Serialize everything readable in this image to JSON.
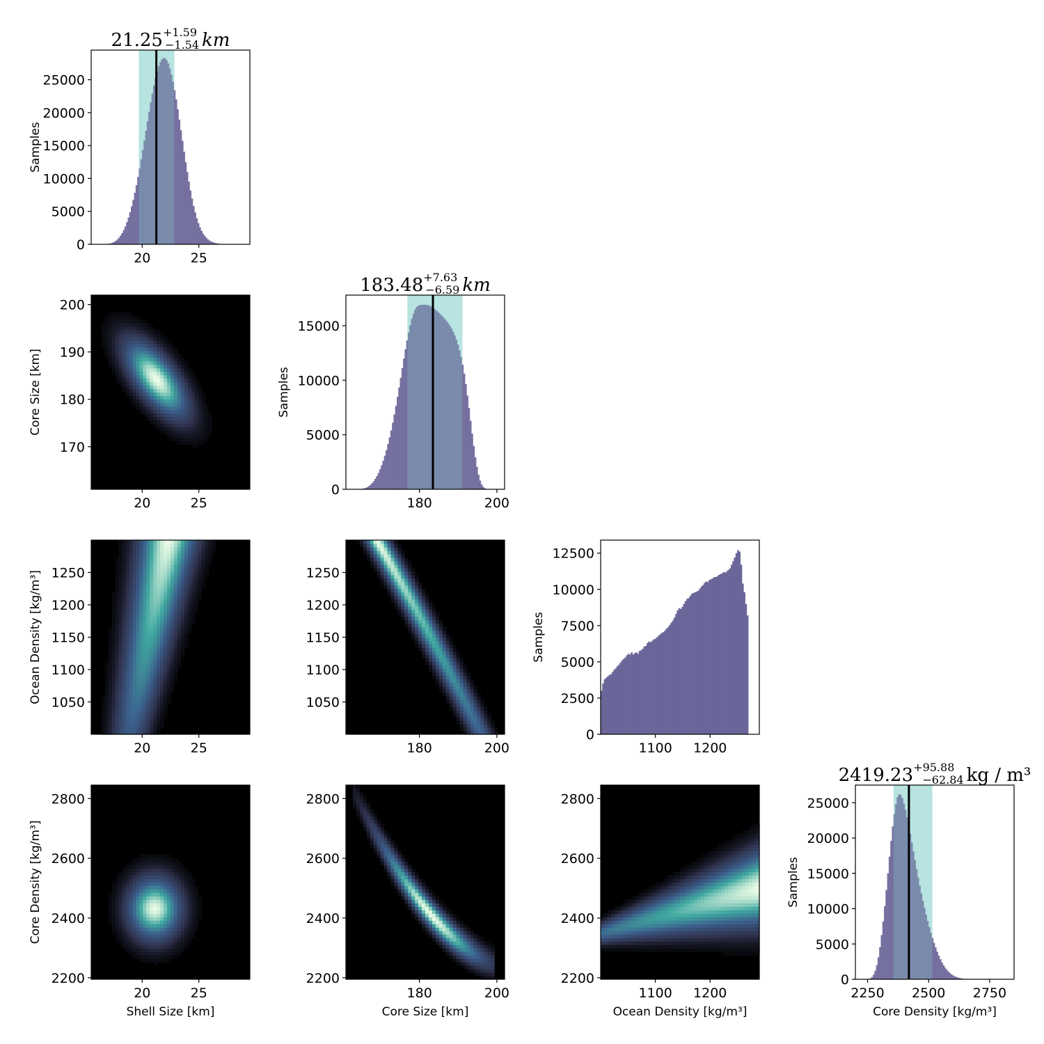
{
  "figure": {
    "type": "corner-plot"
  },
  "colors": {
    "hist_fill": "#6b6699",
    "ci_band": "#8fd3cf",
    "ci_band_opacity": 0.5,
    "median_line": "#000000",
    "density_low": "#000000",
    "density_mid": "#30334f",
    "density_mid2": "#3c5f8c",
    "density_high": "#3fa7a0",
    "density_peak": "#e9fbe4"
  },
  "chart_data": [
    {
      "type": "histogram",
      "id": "shell",
      "title_main": "21.25",
      "title_plus": "+1.59",
      "title_minus": "−1.54",
      "title_unit": "km",
      "title_unit_italic": true,
      "ylabel": "Samples",
      "xlabel": "",
      "xlim": [
        15.5,
        29.5
      ],
      "ylim": [
        0,
        29500
      ],
      "xticks": [
        {
          "v": 20,
          "label": "20"
        },
        {
          "v": 25,
          "label": "25"
        }
      ],
      "yticks": [
        {
          "v": 0,
          "label": "0"
        },
        {
          "v": 5000,
          "label": "5000"
        },
        {
          "v": 10000,
          "label": "10000"
        },
        {
          "v": 15000,
          "label": "15000"
        },
        {
          "v": 20000,
          "label": "20000"
        },
        {
          "v": 25000,
          "label": "25000"
        }
      ],
      "median": 21.25,
      "ci": [
        19.71,
        22.84
      ],
      "bins": {
        "start": 15.5,
        "step": 0.14,
        "values": [
          0,
          0,
          0,
          0,
          0,
          0,
          5,
          11,
          22,
          39,
          66,
          105,
          162,
          251,
          371,
          530,
          738,
          1000,
          1320,
          1700,
          2160,
          2700,
          3340,
          4060,
          4870,
          5770,
          6750,
          7830,
          8990,
          10230,
          11540,
          12900,
          14320,
          15770,
          17240,
          18710,
          20150,
          21550,
          22880,
          24120,
          25230,
          26220,
          27040,
          27670,
          28100,
          28300,
          28260,
          27970,
          27460,
          26720,
          25790,
          24680,
          23410,
          22010,
          20510,
          18940,
          17320,
          15690,
          14070,
          12490,
          10960,
          9520,
          8170,
          6940,
          5820,
          4830,
          3960,
          3210,
          2580,
          2050,
          1620,
          1270,
          990,
          760,
          580,
          440,
          330,
          245,
          180,
          130,
          94,
          67,
          47,
          33,
          23,
          16,
          11,
          7,
          5,
          3,
          2,
          1,
          1,
          0,
          0,
          0,
          0,
          0,
          0,
          0
        ]
      }
    },
    {
      "type": "heatmap",
      "id": "shell-core",
      "ylabel": "Core Size [km]",
      "xlabel": "",
      "xlim": [
        15.5,
        29.5
      ],
      "ylim": [
        161,
        202
      ],
      "xticks": [
        {
          "v": 20,
          "label": "20"
        },
        {
          "v": 25,
          "label": "25"
        }
      ],
      "yticks": [
        {
          "v": 170,
          "label": "170"
        },
        {
          "v": 180,
          "label": "180"
        },
        {
          "v": 190,
          "label": "190"
        },
        {
          "v": 200,
          "label": "200"
        }
      ]
    },
    {
      "type": "histogram",
      "id": "core",
      "title_main": "183.48",
      "title_plus": "+7.63",
      "title_minus": "−6.59",
      "title_unit": "km",
      "title_unit_italic": true,
      "ylabel": "Samples",
      "xlabel": "",
      "xlim": [
        161,
        202
      ],
      "ylim": [
        0,
        17800
      ],
      "xticks": [
        {
          "v": 180,
          "label": "180"
        },
        {
          "v": 200,
          "label": "200"
        }
      ],
      "yticks": [
        {
          "v": 0,
          "label": "0"
        },
        {
          "v": 5000,
          "label": "5000"
        },
        {
          "v": 10000,
          "label": "10000"
        },
        {
          "v": 15000,
          "label": "15000"
        }
      ],
      "median": 183.48,
      "ci": [
        176.89,
        191.11
      ],
      "bins": {
        "start": 161,
        "step": 0.41,
        "values": [
          0,
          0,
          0,
          0,
          0,
          0,
          0,
          0,
          15,
          30,
          55,
          90,
          140,
          210,
          300,
          420,
          570,
          750,
          960,
          1210,
          1500,
          1830,
          2200,
          2620,
          3080,
          3590,
          4150,
          4750,
          5400,
          6100,
          6850,
          7640,
          8470,
          9330,
          10210,
          11100,
          11980,
          12830,
          13640,
          14380,
          15040,
          15620,
          16100,
          16460,
          16700,
          16830,
          16880,
          16900,
          16910,
          16920,
          16910,
          16880,
          16830,
          16760,
          16660,
          16560,
          16440,
          16320,
          16180,
          16040,
          15890,
          15740,
          15570,
          15390,
          15190,
          14970,
          14730,
          14440,
          14110,
          13720,
          13270,
          12740,
          12130,
          11420,
          10600,
          9650,
          8590,
          7460,
          6280,
          5100,
          3970,
          2940,
          2050,
          1330,
          800,
          440,
          220,
          100,
          40,
          15,
          5,
          0,
          0,
          0,
          0,
          0,
          0,
          0,
          0,
          0
        ]
      }
    },
    {
      "type": "heatmap",
      "id": "shell-ocean",
      "ylabel": "Ocean Density [kg/m³]",
      "xlabel": "",
      "xlim": [
        15.5,
        29.5
      ],
      "ylim": [
        1000,
        1300
      ],
      "xticks": [
        {
          "v": 20,
          "label": "20"
        },
        {
          "v": 25,
          "label": "25"
        }
      ],
      "yticks": [
        {
          "v": 1050,
          "label": "1050"
        },
        {
          "v": 1100,
          "label": "1100"
        },
        {
          "v": 1150,
          "label": "1150"
        },
        {
          "v": 1200,
          "label": "1200"
        },
        {
          "v": 1250,
          "label": "1250"
        }
      ]
    },
    {
      "type": "heatmap",
      "id": "core-ocean",
      "ylabel": "",
      "xlabel": "",
      "xlim": [
        161,
        202
      ],
      "ylim": [
        1000,
        1300
      ],
      "xticks": [
        {
          "v": 180,
          "label": "180"
        },
        {
          "v": 200,
          "label": "200"
        }
      ],
      "yticks": [
        {
          "v": 1050,
          "label": "1050"
        },
        {
          "v": 1100,
          "label": "1100"
        },
        {
          "v": 1150,
          "label": "1150"
        },
        {
          "v": 1200,
          "label": "1200"
        },
        {
          "v": 1250,
          "label": "1250"
        }
      ]
    },
    {
      "type": "histogram",
      "id": "ocean",
      "ylabel": "Samples",
      "xlabel": "",
      "xlim": [
        1000,
        1290
      ],
      "ylim": [
        0,
        13400
      ],
      "xticks": [
        {
          "v": 1100,
          "label": "1100"
        },
        {
          "v": 1200,
          "label": "1200"
        }
      ],
      "yticks": [
        {
          "v": 0,
          "label": "0"
        },
        {
          "v": 2500,
          "label": "2500"
        },
        {
          "v": 5000,
          "label": "5000"
        },
        {
          "v": 7500,
          "label": "7500"
        },
        {
          "v": 10000,
          "label": "10000"
        },
        {
          "v": 12500,
          "label": "12500"
        }
      ],
      "bins": {
        "start": 1000,
        "step": 2.9,
        "values": [
          3000,
          3500,
          3800,
          3900,
          4000,
          4100,
          4150,
          4300,
          4450,
          4550,
          4700,
          4800,
          4950,
          5100,
          5200,
          5300,
          5450,
          5550,
          5500,
          5650,
          5500,
          5600,
          5650,
          5550,
          5750,
          5800,
          5900,
          6050,
          6100,
          6300,
          6400,
          6350,
          6450,
          6550,
          6600,
          6700,
          6800,
          6900,
          7000,
          7050,
          7150,
          7300,
          7400,
          7550,
          7700,
          7850,
          8050,
          8300,
          8550,
          8700,
          8650,
          8800,
          9000,
          9200,
          9350,
          9400,
          9550,
          9700,
          9750,
          9800,
          9850,
          9900,
          10050,
          10200,
          10300,
          10450,
          10550,
          10500,
          10650,
          10700,
          10750,
          10850,
          10850,
          10900,
          11000,
          11050,
          11100,
          11200,
          11150,
          11250,
          11350,
          11450,
          11700,
          11950,
          12200,
          12500,
          12700,
          12600,
          11700,
          10400,
          9800,
          9000,
          8200
        ]
      }
    },
    {
      "type": "heatmap",
      "id": "shell-coredens",
      "ylabel": "Core Density [kg/m³]",
      "xlabel": "Shell Size [km]",
      "xlim": [
        15.5,
        29.5
      ],
      "ylim": [
        2195,
        2845
      ],
      "xticks": [
        {
          "v": 20,
          "label": "20"
        },
        {
          "v": 25,
          "label": "25"
        }
      ],
      "yticks": [
        {
          "v": 2200,
          "label": "2200"
        },
        {
          "v": 2400,
          "label": "2400"
        },
        {
          "v": 2600,
          "label": "2600"
        },
        {
          "v": 2800,
          "label": "2800"
        }
      ]
    },
    {
      "type": "heatmap",
      "id": "core-coredens",
      "ylabel": "",
      "xlabel": "Core Size [km]",
      "xlim": [
        161,
        202
      ],
      "ylim": [
        2195,
        2845
      ],
      "xticks": [
        {
          "v": 180,
          "label": "180"
        },
        {
          "v": 200,
          "label": "200"
        }
      ],
      "yticks": [
        {
          "v": 2200,
          "label": "2200"
        },
        {
          "v": 2400,
          "label": "2400"
        },
        {
          "v": 2600,
          "label": "2600"
        },
        {
          "v": 2800,
          "label": "2800"
        }
      ]
    },
    {
      "type": "heatmap",
      "id": "ocean-coredens",
      "ylabel": "",
      "xlabel": "Ocean Density [kg/m³]",
      "xlim": [
        1000,
        1290
      ],
      "ylim": [
        2195,
        2845
      ],
      "xticks": [
        {
          "v": 1100,
          "label": "1100"
        },
        {
          "v": 1200,
          "label": "1200"
        }
      ],
      "yticks": [
        {
          "v": 2200,
          "label": "2200"
        },
        {
          "v": 2400,
          "label": "2400"
        },
        {
          "v": 2600,
          "label": "2600"
        },
        {
          "v": 2800,
          "label": "2800"
        }
      ]
    },
    {
      "type": "histogram",
      "id": "coredens",
      "title_main": "2419.23",
      "title_plus": "+95.88",
      "title_minus": "−62.84",
      "title_unit": "kg / m³",
      "title_unit_italic": false,
      "ylabel": "Samples",
      "xlabel": "Core Density [kg/m³]",
      "xlim": [
        2200,
        2850
      ],
      "ylim": [
        0,
        27500
      ],
      "xticks": [
        {
          "v": 2250,
          "label": "2250"
        },
        {
          "v": 2500,
          "label": "2500"
        },
        {
          "v": 2750,
          "label": "2750"
        }
      ],
      "yticks": [
        {
          "v": 0,
          "label": "0"
        },
        {
          "v": 5000,
          "label": "5000"
        },
        {
          "v": 10000,
          "label": "10000"
        },
        {
          "v": 15000,
          "label": "15000"
        },
        {
          "v": 20000,
          "label": "20000"
        },
        {
          "v": 25000,
          "label": "25000"
        }
      ],
      "median": 2419.23,
      "ci": [
        2356.39,
        2515.11
      ],
      "bins": {
        "start": 2200,
        "step": 6.5,
        "values": [
          0,
          0,
          0,
          0,
          0,
          0,
          5,
          20,
          60,
          150,
          330,
          660,
          1200,
          2010,
          3120,
          4550,
          6250,
          8200,
          10350,
          12650,
          15000,
          17350,
          19600,
          21650,
          23400,
          24800,
          25800,
          26200,
          26100,
          25650,
          24900,
          24000,
          22950,
          21800,
          20600,
          19350,
          18100,
          16850,
          15600,
          14400,
          13250,
          12150,
          11100,
          10100,
          9150,
          8250,
          7400,
          6600,
          5850,
          5150,
          4500,
          3900,
          3350,
          2850,
          2400,
          2000,
          1650,
          1350,
          1100,
          880,
          700,
          550,
          430,
          330,
          250,
          185,
          135,
          95,
          65,
          42,
          27,
          16,
          9,
          5,
          2,
          1,
          0,
          0,
          0,
          0,
          0,
          0,
          0,
          0,
          0,
          0,
          0,
          0,
          0,
          0,
          0,
          0,
          0,
          0,
          0,
          0,
          0,
          0,
          0,
          0
        ]
      }
    }
  ]
}
